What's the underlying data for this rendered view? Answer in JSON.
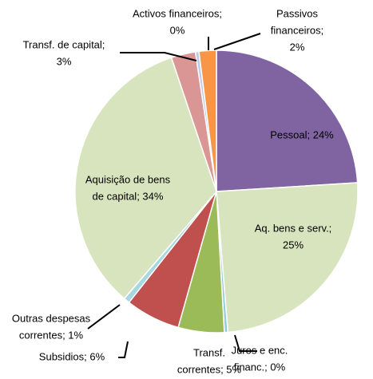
{
  "chart_data": {
    "type": "pie",
    "labels": [
      [
        "Pessoal; 24%"
      ],
      [
        "Aq. bens e serv.;",
        "25%"
      ],
      [
        "Juros e enc.",
        "financ.; 0%"
      ],
      [
        "Transf.",
        "correntes; 5%"
      ],
      [
        "Subsidios; 6%"
      ],
      [
        "Outras despesas",
        "correntes; 1%"
      ],
      [
        "Aquisição de bens",
        "de capital; 34%"
      ],
      [
        "Transf. de capital;",
        "3%"
      ],
      [
        "Activos financeiros;",
        "0%"
      ],
      [
        "Passivos",
        "financeiros;",
        "2%"
      ]
    ],
    "values": [
      24.2,
      24.9,
      0.4,
      5.3,
      6.3,
      0.7,
      33.8,
      2.8,
      0.4,
      2.0
    ],
    "colors": [
      "#8064a2",
      "#d7e4bd",
      "#92cddc",
      "#9bbb59",
      "#c0504d",
      "#a5d8e0",
      "#d7e4bd",
      "#d99694",
      "#b9cde5",
      "#f79646"
    ]
  }
}
